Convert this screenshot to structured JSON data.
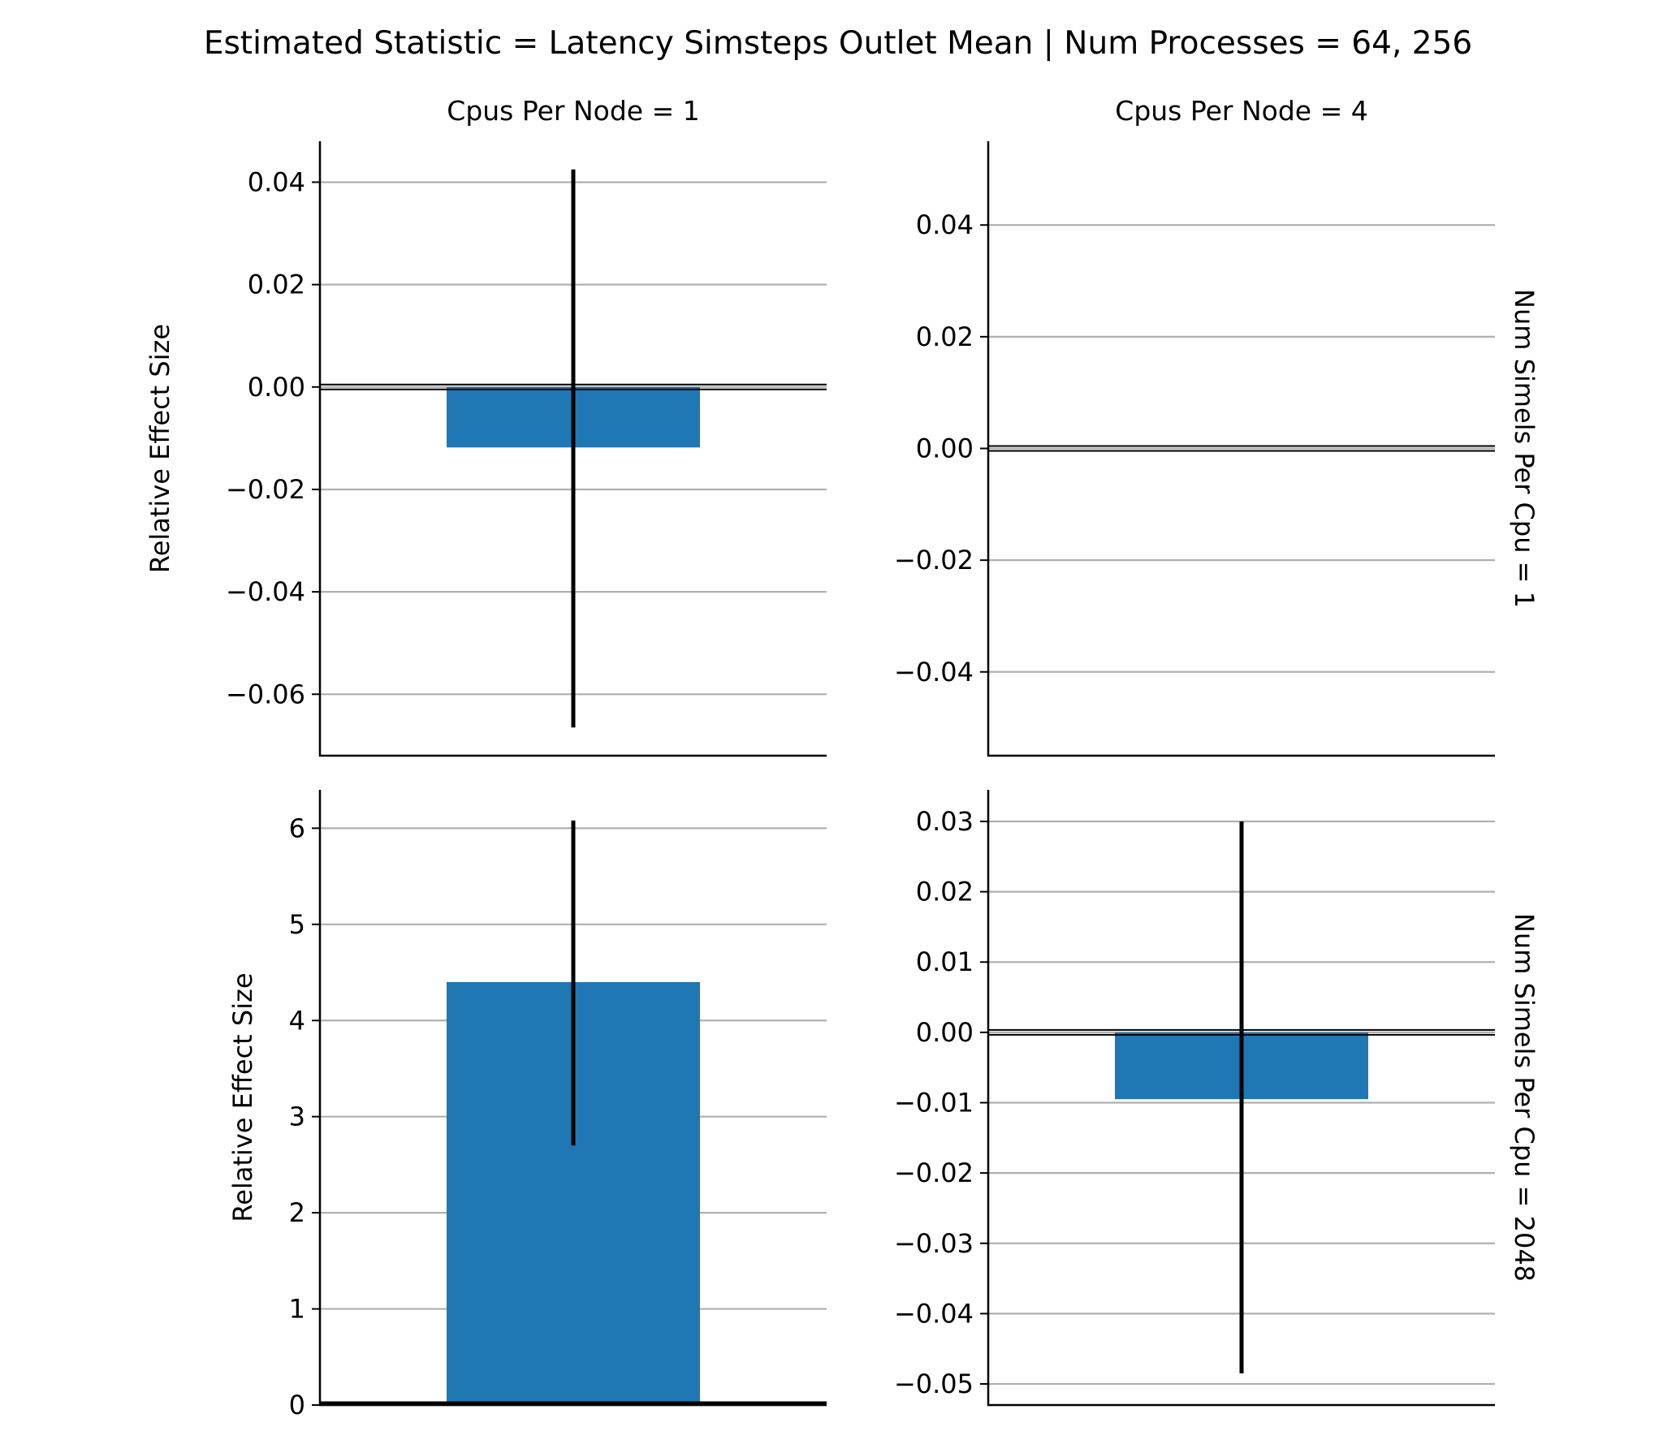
{
  "suptitle": "Estimated Statistic = Latency Simsteps Outlet Mean | Num Processes = 64, 256",
  "colors": {
    "bar": "#1f77b4",
    "grid": "#b0b0b0",
    "errorbar": "#000000",
    "axis": "#000000"
  },
  "chart_data": [
    {
      "type": "bar",
      "col_title": "Cpus Per Node = 1",
      "row_title": "",
      "ylabel": "Relative Effect Size",
      "ylim": [
        -0.072,
        0.048
      ],
      "yticks": [
        0.04,
        0.02,
        0.0,
        -0.02,
        -0.04,
        -0.06
      ],
      "ytick_labels": [
        "0.04",
        "0.02",
        "0.00",
        "−0.02",
        "−0.04",
        "−0.06"
      ],
      "value": -0.0118,
      "err_low": -0.0665,
      "err_high": 0.0425,
      "grid": true
    },
    {
      "type": "bar",
      "col_title": "Cpus Per Node = 4",
      "row_title": "Num Simels Per Cpu = 1",
      "ylabel": "",
      "ylim": [
        -0.055,
        0.055
      ],
      "yticks": [
        0.04,
        0.02,
        0.0,
        -0.02,
        -0.04
      ],
      "ytick_labels": [
        "0.04",
        "0.02",
        "0.00",
        "−0.02",
        "−0.04"
      ],
      "value": 0,
      "err_low": null,
      "err_high": null,
      "grid": true
    },
    {
      "type": "bar",
      "col_title": "",
      "row_title": "",
      "ylabel": "Relative Effect Size",
      "ylim": [
        0,
        6.4
      ],
      "yticks": [
        6,
        5,
        4,
        3,
        2,
        1,
        0
      ],
      "ytick_labels": [
        "6",
        "5",
        "4",
        "3",
        "2",
        "1",
        "0"
      ],
      "value": 4.4,
      "err_low": 2.7,
      "err_high": 6.08,
      "grid": true
    },
    {
      "type": "bar",
      "col_title": "",
      "row_title": "Num Simels Per Cpu = 2048",
      "ylabel": "",
      "ylim": [
        -0.053,
        0.0345
      ],
      "yticks": [
        0.03,
        0.02,
        0.01,
        0.0,
        -0.01,
        -0.02,
        -0.03,
        -0.04,
        -0.05
      ],
      "ytick_labels": [
        "0.03",
        "0.02",
        "0.01",
        "0.00",
        "−0.01",
        "−0.02",
        "−0.03",
        "−0.04",
        "−0.05"
      ],
      "value": -0.0095,
      "err_low": -0.0485,
      "err_high": 0.03,
      "grid": true
    }
  ]
}
